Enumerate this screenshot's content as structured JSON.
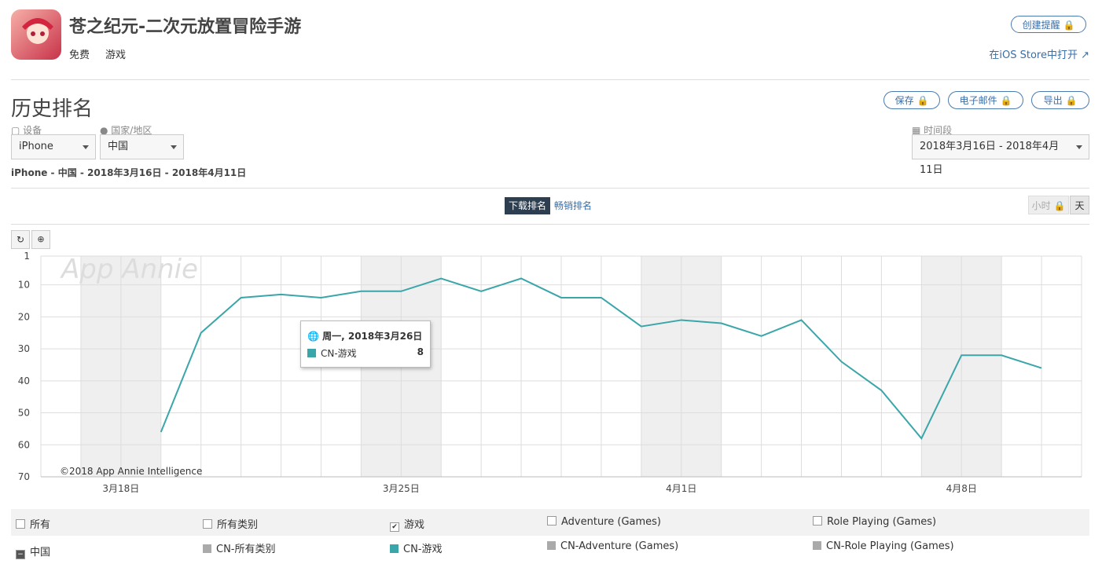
{
  "app": {
    "name": "苍之纪元-二次元放置冒险手游",
    "price": "免费",
    "category": "游戏",
    "alert_button": "创建提醒",
    "store_link": "在iOS Store中打开"
  },
  "section": {
    "title": "历史排名",
    "actions": [
      "保存",
      "电子邮件",
      "导出"
    ]
  },
  "filters": {
    "device_label": "设备",
    "device": "iPhone",
    "country_label": "国家/地区",
    "country": "中国",
    "period_label": "时间段",
    "period": "2018年3月16日 - 2018年4月11日"
  },
  "summary": "iPhone - 中国 - 2018年3月16日 - 2018年4月11日",
  "tabs": [
    "下载排名",
    "畅销排名"
  ],
  "granularity": [
    "小时",
    "天"
  ],
  "chart_data": {
    "type": "line",
    "y_inverted": true,
    "grid": true,
    "categories": [
      null,
      null,
      "3月18日",
      null,
      null,
      null,
      null,
      null,
      null,
      "3月25日",
      null,
      null,
      null,
      null,
      null,
      null,
      "4月1日",
      null,
      null,
      null,
      null,
      null,
      null,
      "4月8日",
      null,
      null,
      null
    ],
    "series": [
      {
        "name": "CN-游戏",
        "color": "#3aa6a9",
        "values": [
          null,
          null,
          null,
          56,
          25,
          14,
          13,
          14,
          12,
          12,
          8,
          12,
          8,
          14,
          14,
          23,
          21,
          22,
          26,
          21,
          34,
          43,
          58,
          32,
          32,
          36,
          null
        ]
      }
    ],
    "ylim": [
      1,
      70
    ],
    "yticks": [
      1,
      10,
      20,
      30,
      40,
      50,
      60,
      70
    ],
    "watermark": "App Annie",
    "copyright": "©2018 App Annie Intelligence",
    "tooltip": {
      "date": "周一, 2018年3月26日"
    }
  },
  "legend_table": {
    "header": [
      "所有",
      "所有类别",
      "游戏",
      "Adventure (Games)",
      "Role Playing (Games)"
    ],
    "checked": [
      false,
      false,
      true,
      false,
      false
    ],
    "row_label": "中国",
    "other_items": [
      "CN-所有类别",
      "CN-Adventure (Games)",
      "CN-Role Playing (Games)"
    ],
    "other_color": "#aaaaaa"
  }
}
